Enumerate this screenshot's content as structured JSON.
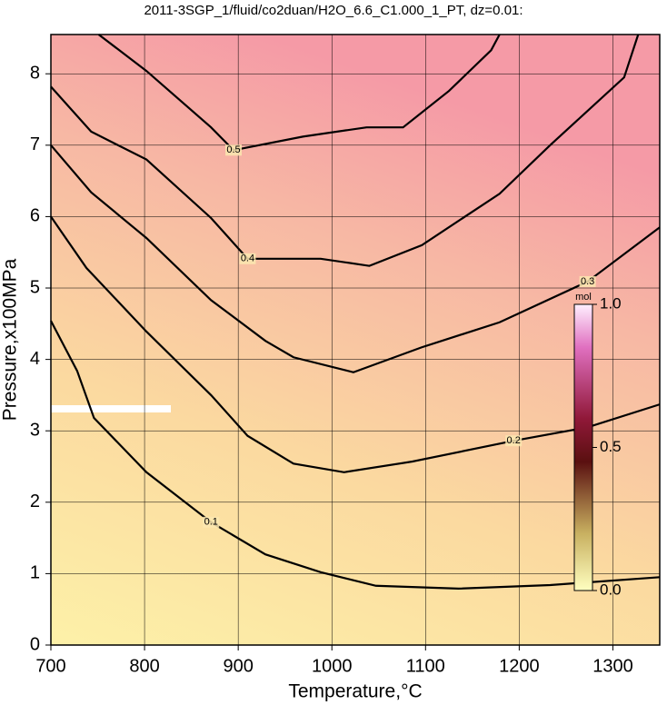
{
  "chart_data": {
    "type": "contour",
    "title": "2011-3SGP_1/fluid/co2duan/H2O_6.6_C1.000_1_PT, dz=0.01:",
    "xlabel": "Temperature,°C",
    "ylabel": "Pressure,x100MPa",
    "xlim": [
      700,
      1350
    ],
    "ylim": [
      0,
      8.55
    ],
    "xticks": [
      700,
      800,
      900,
      1000,
      1100,
      1200,
      1300
    ],
    "yticks": [
      0,
      1,
      2,
      3,
      4,
      5,
      6,
      7,
      8
    ],
    "grid": true,
    "color": "#000000",
    "contours": [
      {
        "level": 0.1,
        "x": [
          700,
          728,
          746,
          802,
          871,
          929,
          988,
          1047,
          1135,
          1233,
          1350
        ],
        "y": [
          4.54,
          3.84,
          3.18,
          2.42,
          1.72,
          1.27,
          1.02,
          0.83,
          0.79,
          0.84,
          0.95
        ]
      },
      {
        "level": 0.2,
        "x": [
          700,
          738,
          802,
          871,
          910,
          959,
          1013,
          1086,
          1194,
          1273,
          1350
        ],
        "y": [
          6.0,
          5.28,
          4.39,
          3.5,
          2.93,
          2.54,
          2.42,
          2.57,
          2.86,
          3.05,
          3.37
        ]
      },
      {
        "level": 0.3,
        "x": [
          700,
          743,
          802,
          871,
          929,
          959,
          1023,
          1096,
          1179,
          1273,
          1350
        ],
        "y": [
          7.0,
          6.34,
          5.7,
          4.83,
          4.26,
          4.03,
          3.82,
          4.17,
          4.52,
          5.09,
          5.85
        ]
      },
      {
        "level": 0.4,
        "x": [
          700,
          743,
          802,
          871,
          910,
          988,
          1040,
          1096,
          1179,
          1233,
          1312,
          1327
        ],
        "y": [
          7.82,
          7.19,
          6.8,
          5.98,
          5.41,
          5.41,
          5.31,
          5.6,
          6.32,
          7.0,
          7.95,
          8.55
        ]
      },
      {
        "level": 0.5,
        "x": [
          751,
          802,
          871,
          895,
          969,
          1037,
          1076,
          1125,
          1170,
          1179
        ],
        "y": [
          8.55,
          8.04,
          7.25,
          6.93,
          7.12,
          7.25,
          7.25,
          7.76,
          8.33,
          8.55
        ]
      }
    ],
    "colorbar": {
      "label": "mol",
      "lim": [
        0,
        1
      ],
      "ticks": [
        {
          "value": 0,
          "label": "0.0"
        },
        0.5,
        {
          "value": 1,
          "label": "1.0"
        }
      ]
    }
  }
}
